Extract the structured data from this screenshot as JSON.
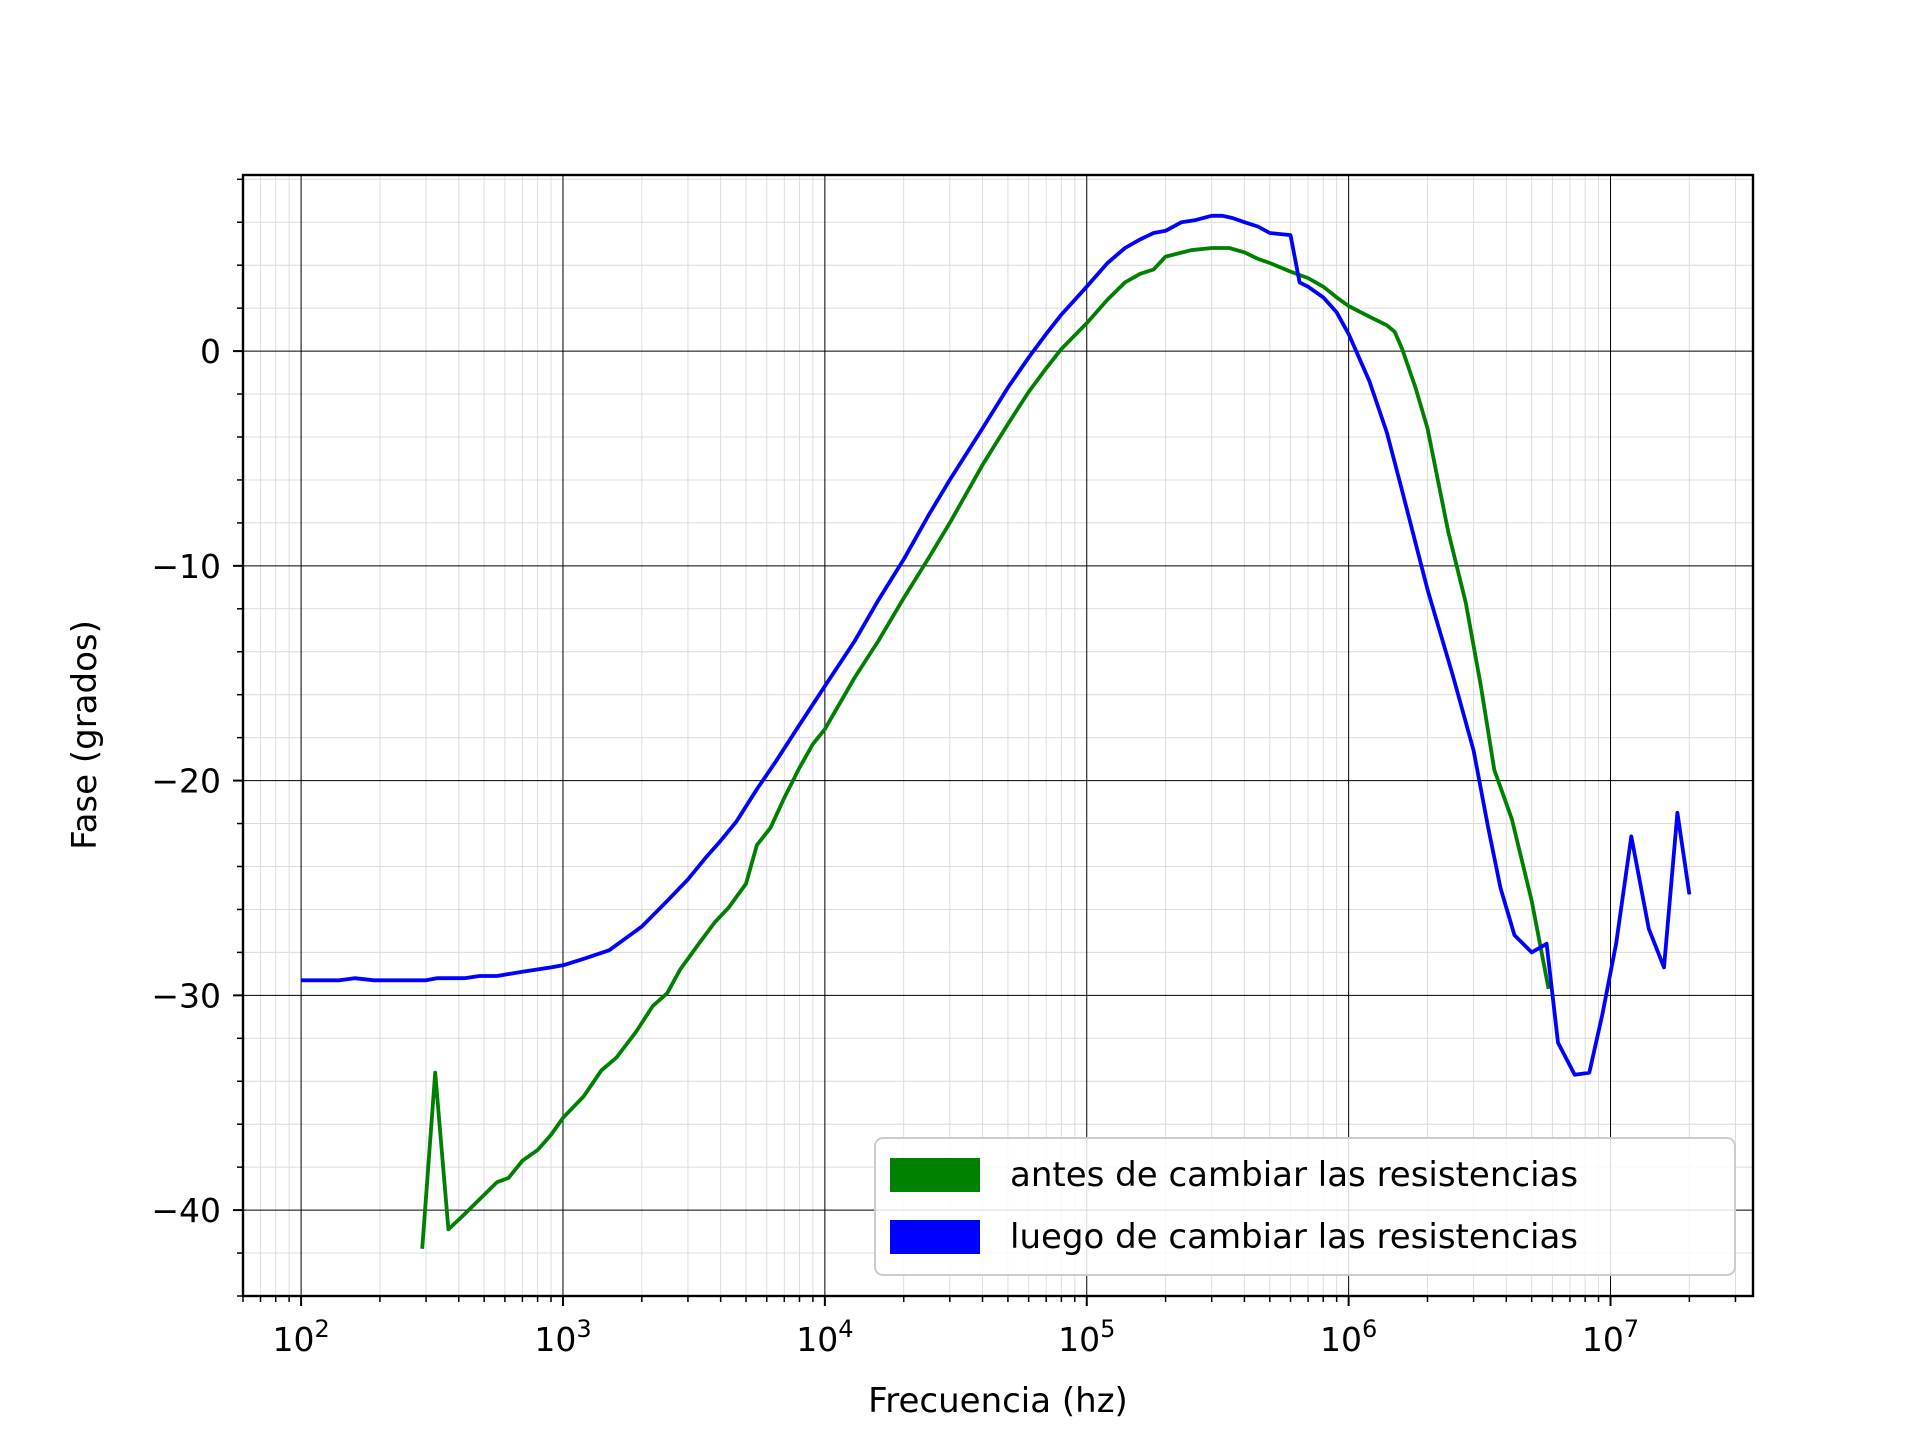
{
  "chart_data": {
    "type": "line",
    "xlabel": "Frecuencia (hz)",
    "ylabel": "Fase (grados)",
    "xscale": "log",
    "xlim": [
      60,
      35000000
    ],
    "ylim": [
      -44,
      8.2
    ],
    "grid": "major and minor",
    "legend_position": "bottom-right",
    "x_ticks": [
      {
        "value": 100,
        "base": "10",
        "exp": "2"
      },
      {
        "value": 1000,
        "base": "10",
        "exp": "3"
      },
      {
        "value": 10000,
        "base": "10",
        "exp": "4"
      },
      {
        "value": 100000,
        "base": "10",
        "exp": "5"
      },
      {
        "value": 1000000,
        "base": "10",
        "exp": "6"
      },
      {
        "value": 10000000,
        "base": "10",
        "exp": "7"
      }
    ],
    "y_ticks": [
      {
        "value": 0,
        "label": "0"
      },
      {
        "value": -10,
        "label": "−10"
      },
      {
        "value": -20,
        "label": "−20"
      },
      {
        "value": -30,
        "label": "−30"
      },
      {
        "value": -40,
        "label": "−40"
      }
    ],
    "series": [
      {
        "name": "antes de cambiar las resistencias",
        "color": "#008000",
        "x": [
          290,
          325,
          365,
          420,
          480,
          560,
          620,
          700,
          800,
          900,
          1000,
          1200,
          1400,
          1600,
          1900,
          2200,
          2500,
          2800,
          3300,
          3800,
          4300,
          5000,
          5500,
          6200,
          7000,
          8000,
          9000,
          10000,
          13000,
          16000,
          20000,
          25000,
          30000,
          40000,
          50000,
          60000,
          70000,
          80000,
          100000,
          120000,
          140000,
          160000,
          180000,
          200000,
          250000,
          300000,
          350000,
          400000,
          450000,
          500000,
          600000,
          700000,
          800000,
          900000,
          1000000,
          1200000,
          1400000,
          1500000,
          1600000,
          1800000,
          2000000,
          2400000,
          2800000,
          3200000,
          3600000,
          4200000,
          5000000,
          5800000
        ],
        "y": [
          -41.8,
          -33.6,
          -40.9,
          -40.2,
          -39.5,
          -38.7,
          -38.5,
          -37.7,
          -37.2,
          -36.5,
          -35.7,
          -34.7,
          -33.5,
          -32.9,
          -31.7,
          -30.5,
          -29.9,
          -28.8,
          -27.6,
          -26.6,
          -25.9,
          -24.8,
          -23.0,
          -22.2,
          -20.8,
          -19.4,
          -18.3,
          -17.6,
          -15.2,
          -13.5,
          -11.5,
          -9.6,
          -8.0,
          -5.3,
          -3.4,
          -1.9,
          -0.8,
          0.1,
          1.3,
          2.4,
          3.2,
          3.6,
          3.8,
          4.4,
          4.7,
          4.8,
          4.8,
          4.6,
          4.3,
          4.1,
          3.7,
          3.4,
          3.0,
          2.5,
          2.1,
          1.6,
          1.2,
          0.9,
          0.1,
          -1.7,
          -3.6,
          -8.4,
          -11.7,
          -15.6,
          -19.5,
          -21.8,
          -25.6,
          -29.7
        ]
      },
      {
        "name": "luego de cambiar las resistencias",
        "color": "#0000ff",
        "x": [
          100,
          140,
          160,
          190,
          230,
          300,
          330,
          420,
          480,
          560,
          700,
          900,
          1000,
          1200,
          1500,
          2000,
          2500,
          3000,
          3500,
          4000,
          4600,
          5500,
          6500,
          8000,
          10000,
          13000,
          16000,
          20000,
          25000,
          30000,
          40000,
          50000,
          60000,
          70000,
          80000,
          100000,
          120000,
          140000,
          160000,
          180000,
          200000,
          230000,
          260000,
          300000,
          330000,
          360000,
          400000,
          450000,
          500000,
          600000,
          650000,
          700000,
          800000,
          900000,
          1000000,
          1200000,
          1400000,
          1600000,
          2000000,
          2500000,
          3000000,
          3400000,
          3800000,
          4300000,
          5000000,
          5700000,
          6300000,
          7300000,
          8300000,
          9300000,
          10500000,
          12000000,
          14000000,
          16000000,
          18000000,
          20000000
        ],
        "y": [
          -29.3,
          -29.3,
          -29.2,
          -29.3,
          -29.3,
          -29.3,
          -29.2,
          -29.2,
          -29.1,
          -29.1,
          -28.9,
          -28.7,
          -28.6,
          -28.3,
          -27.9,
          -26.8,
          -25.6,
          -24.6,
          -23.6,
          -22.8,
          -21.9,
          -20.4,
          -19.1,
          -17.4,
          -15.6,
          -13.5,
          -11.6,
          -9.7,
          -7.6,
          -6.0,
          -3.6,
          -1.7,
          -0.3,
          0.8,
          1.7,
          3.0,
          4.1,
          4.8,
          5.2,
          5.5,
          5.6,
          6.0,
          6.1,
          6.3,
          6.3,
          6.2,
          6.0,
          5.8,
          5.5,
          5.4,
          3.2,
          3.0,
          2.5,
          1.8,
          0.8,
          -1.4,
          -3.8,
          -6.5,
          -11.1,
          -15.1,
          -18.6,
          -22.1,
          -25.0,
          -27.2,
          -28.0,
          -27.6,
          -32.2,
          -33.7,
          -33.6,
          -30.9,
          -27.6,
          -22.6,
          -26.9,
          -28.7,
          -21.5,
          -25.3
        ]
      }
    ]
  }
}
